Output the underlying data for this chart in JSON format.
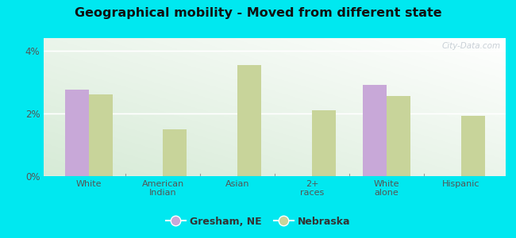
{
  "title": "Geographical mobility - Moved from different state",
  "categories": [
    "White",
    "American\nIndian",
    "Asian",
    "2+\nraces",
    "White\nalone",
    "Hispanic"
  ],
  "gresham_values": [
    2.75,
    0,
    0,
    0,
    2.9,
    0
  ],
  "nebraska_values": [
    2.6,
    1.5,
    3.55,
    2.1,
    2.55,
    1.92
  ],
  "gresham_color": "#c8a8d8",
  "nebraska_color": "#c8d49a",
  "ylim": [
    0,
    4.4
  ],
  "yticks": [
    0,
    2,
    4
  ],
  "ytick_labels": [
    "0%",
    "2%",
    "4%"
  ],
  "outer_bg": "#00e8f0",
  "bar_width": 0.32,
  "legend_labels": [
    "Gresham, NE",
    "Nebraska"
  ],
  "watermark": "City-Data.com"
}
